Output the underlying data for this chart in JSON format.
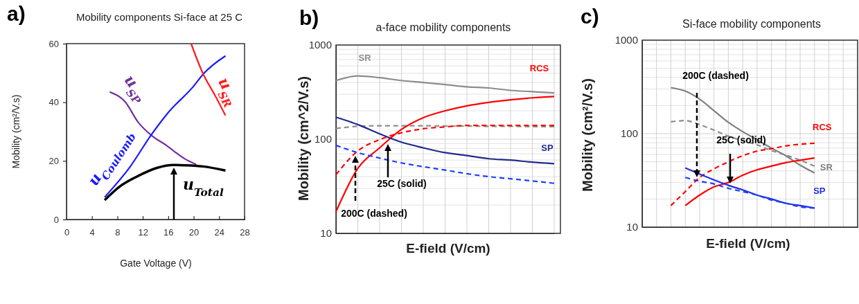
{
  "chart_data": [
    {
      "type": "line",
      "title": "Mobility components Si-face at 25 C",
      "xlabel": "Gate Voltage (V)",
      "ylabel": "Mobility (cm²/V.s)",
      "xlim": [
        0,
        28
      ],
      "xticks": [
        0,
        4,
        8,
        12,
        16,
        20,
        24,
        28
      ],
      "ylim": [
        0,
        60
      ],
      "yticks": [
        0,
        20,
        40,
        60
      ],
      "annotations": [
        "a)"
      ],
      "series": [
        {
          "name": "u$_{SP}$",
          "color": "#7030a0",
          "x": [
            6.8,
            9.2,
            11.3,
            13.3,
            15.7,
            18.6,
            20.4
          ],
          "values": [
            43.5,
            40.2,
            33.1,
            28.8,
            25.3,
            20.7,
            18.8
          ]
        },
        {
          "name": "u$_{Coulomb}$",
          "color": "#1a1aff",
          "x": [
            6,
            10,
            13.3,
            16,
            20,
            21.5,
            25
          ],
          "values": [
            7.6,
            18,
            28.8,
            36.5,
            45.5,
            49.6,
            55.8
          ]
        },
        {
          "name": "u$_{SR}$",
          "color": "#ff1a1a",
          "x": [
            19.6,
            21.5,
            23.3,
            25
          ],
          "values": [
            60,
            49.6,
            42.6,
            35.5
          ]
        },
        {
          "name": "u$_{Total}$",
          "color": "#000000",
          "x": [
            6,
            8.4,
            11.3,
            14.2,
            16.8,
            18.6,
            21.5,
            25
          ],
          "values": [
            6.6,
            11.3,
            14.9,
            17.6,
            18.6,
            18.5,
            18.1,
            16.7
          ]
        }
      ]
    },
    {
      "type": "line",
      "title": "a-face mobility components",
      "xlabel": "E-field (V/cm)",
      "ylabel": "Mobility (cm^2/V.s)",
      "log": true,
      "ylim": [
        10,
        1000
      ],
      "yticks": [
        10,
        100,
        1000
      ],
      "grid": true,
      "tick_labels": "y",
      "annotations": [
        "b)",
        "25C (solid)",
        "200C (dashed)"
      ],
      "categories": [
        null,
        null,
        null,
        null,
        null,
        null,
        null,
        null,
        null,
        null,
        null
      ],
      "series": [
        {
          "name": "SR",
          "color": "#8c8c8c",
          "values": [
            420,
            470,
            450,
            420,
            400,
            380,
            360,
            350,
            330,
            320,
            310
          ]
        },
        {
          "color": "#8c8c8c",
          "line_style": "dashed",
          "values": [
            130,
            137,
            139,
            139,
            139,
            138,
            138,
            137,
            137,
            136,
            136
          ]
        },
        {
          "name": "RCS",
          "color": "#ff0000",
          "values": [
            17,
            49,
            81,
            127,
            169,
            200,
            226,
            246,
            262,
            275,
            284
          ]
        },
        {
          "color": "#ff0000",
          "line_style": "dashed",
          "values": [
            42,
            75,
            99,
            117,
            129,
            135,
            140,
            140,
            140,
            140,
            140
          ]
        },
        {
          "name": "SP",
          "color": "#1f2a8c",
          "values": [
            171,
            143,
            114,
            93,
            81,
            72,
            67,
            62,
            60,
            57,
            55
          ]
        },
        {
          "color": "#1e3cff",
          "line_style": "dashed",
          "values": [
            86,
            72,
            63,
            56,
            51,
            47,
            43,
            40,
            38,
            36,
            34
          ]
        }
      ]
    },
    {
      "type": "line",
      "title": "Si-face mobility components",
      "xlabel": "E-field (V/cm)",
      "ylabel": "Mobility (cm²/V.s)",
      "log": true,
      "ylim": [
        10,
        1000
      ],
      "yticks": [
        10,
        100,
        1000
      ],
      "grid": true,
      "tick_labels": "y",
      "annotations": [
        "c)",
        "200C (dashed)",
        "25C (solid)"
      ],
      "categories": [
        null,
        null,
        null,
        null,
        null,
        null,
        null,
        null,
        null,
        null,
        null,
        null,
        null,
        null,
        null,
        null
      ],
      "series": [
        {
          "name": "SR",
          "color": "#808080",
          "values": [
            null,
            null,
            311,
            285,
            234,
            176,
            132,
            105,
            86,
            70,
            58,
            46,
            38,
            null,
            null,
            null
          ]
        },
        {
          "color": "#8c8c8c",
          "line_style": "dashed",
          "values": [
            null,
            null,
            134,
            138,
            125,
            109,
            94,
            84,
            76,
            66,
            59,
            52,
            45,
            null,
            null,
            null
          ]
        },
        {
          "name": "RCS",
          "color": "#ff0000",
          "values": [
            null,
            null,
            null,
            17,
            22,
            27,
            30,
            36,
            41,
            45,
            49,
            52,
            55,
            null,
            null,
            null
          ]
        },
        {
          "color": "#ff0000",
          "line_style": "dashed",
          "values": [
            null,
            null,
            17,
            24,
            34,
            42,
            50,
            58,
            65,
            69,
            74,
            77,
            79,
            null,
            null,
            null
          ]
        },
        {
          "name": "SP",
          "color": "#1f2ee0",
          "values": [
            null,
            null,
            null,
            43,
            37,
            32,
            28,
            25,
            22,
            20,
            18,
            17,
            16,
            null,
            null,
            null
          ]
        },
        {
          "color": "#2040ff",
          "line_style": "dashed",
          "values": [
            null,
            null,
            null,
            34,
            31,
            29,
            26,
            24,
            22,
            19.5,
            18,
            16.5,
            16,
            null,
            null,
            null
          ]
        }
      ]
    }
  ]
}
